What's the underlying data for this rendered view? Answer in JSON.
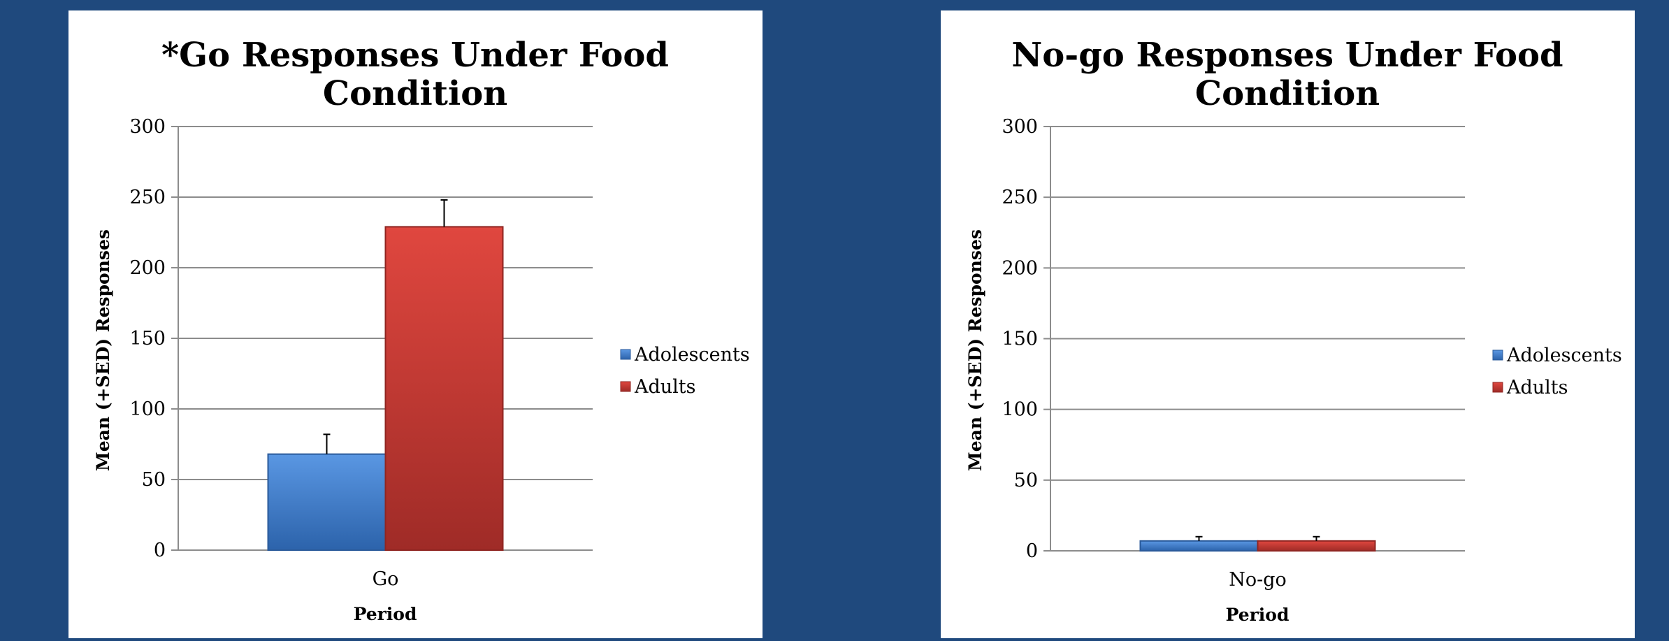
{
  "chart_data": [
    {
      "type": "bar",
      "title_lines": [
        "*Go Responses Under Food",
        "Condition"
      ],
      "xlabel": "Period",
      "ylabel": "Mean (+SED) Responses",
      "ylim": [
        0,
        300
      ],
      "yticks": [
        0,
        50,
        100,
        150,
        200,
        250,
        300
      ],
      "categories": [
        "Go"
      ],
      "grid": true,
      "legend_position": "right",
      "series": [
        {
          "name": "Adolescents",
          "color": "#4a86d4",
          "values": [
            68
          ],
          "error": [
            14
          ]
        },
        {
          "name": "Adults",
          "color": "#d8403c",
          "values": [
            229
          ],
          "error": [
            19
          ]
        }
      ]
    },
    {
      "type": "bar",
      "title_lines": [
        "No-go Responses Under Food",
        "Condition"
      ],
      "xlabel": "Period",
      "ylabel": "Mean (+SED) Responses",
      "ylim": [
        0,
        300
      ],
      "yticks": [
        0,
        50,
        100,
        150,
        200,
        250,
        300
      ],
      "categories": [
        "No-go"
      ],
      "grid": true,
      "legend_position": "right",
      "series": [
        {
          "name": "Adolescents",
          "color": "#4a86d4",
          "values": [
            7
          ],
          "error": [
            3
          ]
        },
        {
          "name": "Adults",
          "color": "#d8403c",
          "values": [
            7
          ],
          "error": [
            3
          ]
        }
      ]
    }
  ]
}
